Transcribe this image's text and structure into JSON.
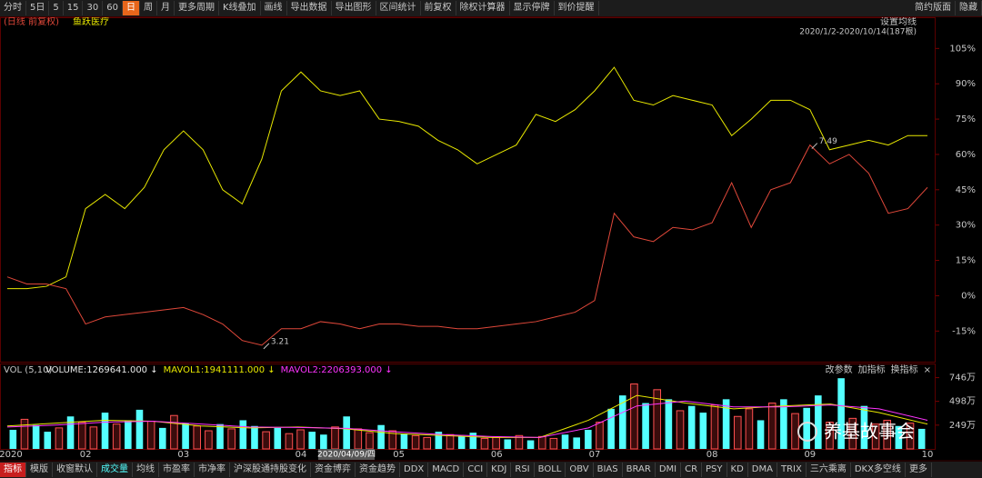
{
  "toolbar": {
    "items": [
      "分时",
      "5日",
      "5",
      "15",
      "30",
      "60",
      "日",
      "周",
      "月",
      "更多周期",
      "K线叠加",
      "画线",
      "导出数据",
      "导出图形",
      "区间统计",
      "前复权",
      "除权计算器",
      "显示停牌",
      "到价提醒"
    ],
    "active": 6
  },
  "toolbar_right": [
    "简约版面",
    "隐藏"
  ],
  "chart_data": [
    {
      "type": "line",
      "subtitle": "(日线 前复权)",
      "header_right": [
        "设置均线",
        "2020/1/2-2020/10/14(187根)"
      ],
      "categories": [
        "2020",
        null,
        null,
        null,
        "02",
        null,
        null,
        null,
        null,
        "03",
        null,
        null,
        null,
        null,
        null,
        "04",
        null,
        null,
        null,
        null,
        "05",
        null,
        null,
        null,
        null,
        "06",
        null,
        null,
        null,
        null,
        "07",
        null,
        null,
        null,
        null,
        null,
        "08",
        null,
        null,
        null,
        null,
        "09",
        null,
        null,
        null,
        null,
        null,
        "10"
      ],
      "series": [
        {
          "name": "鱼跃医疗",
          "color": "#e8e800",
          "values": [
            3,
            3,
            4,
            8,
            37,
            43,
            37,
            46,
            62,
            70,
            62,
            45,
            39,
            58,
            87,
            95,
            87,
            85,
            87,
            75,
            74,
            72,
            66,
            62,
            56,
            60,
            64,
            77,
            74,
            79,
            87,
            97,
            83,
            81,
            85,
            83,
            81,
            68,
            75,
            83,
            83,
            79,
            62,
            64,
            66,
            64,
            68,
            68
          ]
        },
        {
          "color": "#e0483a",
          "values": [
            8,
            5,
            5,
            3,
            -12,
            -9,
            -8,
            -7,
            -6,
            -5,
            -8,
            -12,
            -19,
            -21,
            -14,
            -14,
            -11,
            -12,
            -14,
            -12,
            -12,
            -13,
            -13,
            -14,
            -14,
            -13,
            -12,
            -11,
            -9,
            -7,
            -2,
            35,
            25,
            23,
            29,
            28,
            31,
            48,
            29,
            45,
            48,
            64,
            56,
            60,
            52,
            35,
            37,
            46
          ]
        }
      ],
      "annotations": [
        {
          "text": "3.21",
          "series": 1,
          "point": 13
        },
        {
          "text": "7.49",
          "series": 1,
          "point": 41
        }
      ],
      "ylim": [
        -28,
        114
      ],
      "yticks": [
        {
          "value": 105,
          "label": "105%"
        },
        {
          "value": 90,
          "label": "90%"
        },
        {
          "value": 75,
          "label": "75%"
        },
        {
          "value": 60,
          "label": "60%"
        },
        {
          "value": 45,
          "label": "45%"
        },
        {
          "value": 30,
          "label": "30%"
        },
        {
          "value": 15,
          "label": "15%"
        },
        {
          "value": 0,
          "label": "0%"
        },
        {
          "value": -15,
          "label": "-15%"
        }
      ]
    },
    {
      "type": "bar",
      "title": "VOL (5,10)",
      "readouts": [
        {
          "text": "VOLUME:1269641.000 ↓",
          "color": "#e8e8e8"
        },
        {
          "text": "MAVOL1:1941111.000 ↓",
          "color": "#e8e800"
        },
        {
          "text": "MAVOL2:2206393.000 ↓",
          "color": "#ff33ff"
        }
      ],
      "buttons": [
        "改参数",
        "加指标",
        "换指标",
        "×"
      ],
      "cursor_label": "2020/04/09/四",
      "values": [
        200,
        310,
        250,
        180,
        220,
        340,
        280,
        230,
        380,
        260,
        300,
        410,
        290,
        220,
        350,
        270,
        240,
        190,
        260,
        210,
        300,
        240,
        180,
        220,
        160,
        200,
        180,
        150,
        230,
        340,
        210,
        170,
        250,
        190,
        160,
        140,
        120,
        180,
        150,
        130,
        170,
        110,
        120,
        100,
        140,
        90,
        130,
        110,
        150,
        120,
        200,
        280,
        420,
        560,
        680,
        480,
        620,
        520,
        400,
        450,
        380,
        460,
        520,
        340,
        420,
        300,
        480,
        520,
        370,
        430,
        560,
        280,
        740,
        320,
        450,
        260,
        300,
        240,
        270,
        210
      ],
      "up": [
        true,
        false,
        true,
        true,
        false,
        true,
        false,
        false,
        true,
        false,
        true,
        true,
        false,
        true,
        false,
        true,
        false,
        false,
        true,
        false,
        true,
        true,
        false,
        true,
        false,
        false,
        true,
        true,
        false,
        true,
        false,
        false,
        true,
        false,
        true,
        false,
        false,
        true,
        false,
        true,
        true,
        false,
        false,
        true,
        false,
        true,
        false,
        false,
        true,
        true,
        true,
        false,
        true,
        true,
        false,
        true,
        false,
        true,
        false,
        true,
        true,
        false,
        true,
        false,
        false,
        true,
        false,
        true,
        false,
        true,
        true,
        false,
        true,
        false,
        true,
        false,
        false,
        true,
        false,
        true
      ],
      "up_color": "#54ffff",
      "down_color": "#ff5050",
      "lines": [
        {
          "color": "#e8e800",
          "values": [
            240,
            270,
            300,
            290,
            240,
            220,
            230,
            210,
            160,
            140,
            120,
            120,
            300,
            560,
            480,
            420,
            450,
            470,
            380,
            260
          ]
        },
        {
          "color": "#ff33ff",
          "values": [
            230,
            250,
            280,
            290,
            260,
            230,
            225,
            215,
            180,
            150,
            130,
            120,
            220,
            450,
            500,
            440,
            440,
            460,
            420,
            300
          ]
        }
      ],
      "ylim": [
        0,
        780
      ],
      "yticks": [
        {
          "value": 746,
          "label": "746万"
        },
        {
          "value": 498,
          "label": "498万"
        },
        {
          "value": 249,
          "label": "249万"
        }
      ]
    }
  ],
  "bottom_tabs": {
    "items": [
      "指标",
      "模版",
      "收窗默认",
      "成交量",
      "均线",
      "市盈率",
      "市净率",
      "沪深股通持股变化",
      "资金博弈",
      "资金趋势",
      "DDX",
      "MACD",
      "CCI",
      "KDJ",
      "RSI",
      "BOLL",
      "OBV",
      "BIAS",
      "BRAR",
      "DMI",
      "CR",
      "PSY",
      "KD",
      "DMA",
      "TRIX",
      "三六乘离",
      "DKX多空线",
      "更多"
    ],
    "active": 0,
    "highlight": 3
  },
  "watermark": "养基故事会"
}
